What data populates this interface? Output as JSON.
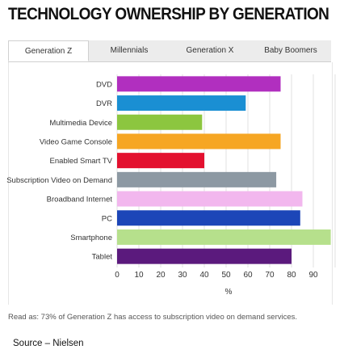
{
  "title": "TECHNOLOGY OWNERSHIP BY GENERATION",
  "tabs": [
    {
      "label": "Generation Z",
      "active": true
    },
    {
      "label": "Millennials",
      "active": false
    },
    {
      "label": "Generation X",
      "active": false
    },
    {
      "label": "Baby Boomers",
      "active": false
    }
  ],
  "chart_data": {
    "type": "bar",
    "orientation": "horizontal",
    "categories": [
      "DVD",
      "DVR",
      "Multimedia Device",
      "Video Game Console",
      "Enabled Smart TV",
      "Subscription Video on Demand",
      "Broadband Internet",
      "PC",
      "Smartphone",
      "Tablet"
    ],
    "values": [
      75,
      59,
      39,
      75,
      40,
      73,
      85,
      84,
      98,
      80
    ],
    "colors": [
      "#b12fbf",
      "#1a8fd3",
      "#8cc63f",
      "#f6a623",
      "#e3112f",
      "#8d99a3",
      "#f2b7ee",
      "#1c46b8",
      "#b6e08c",
      "#5b1a7d"
    ],
    "xlabel": "%",
    "xticks": [
      0,
      10,
      20,
      30,
      40,
      50,
      60,
      70,
      80,
      90
    ],
    "xlim": [
      0,
      100
    ],
    "grid": true
  },
  "note": "Read as: 73% of Generation Z has access to subscription video on demand services.",
  "source": "Source – Nielsen"
}
